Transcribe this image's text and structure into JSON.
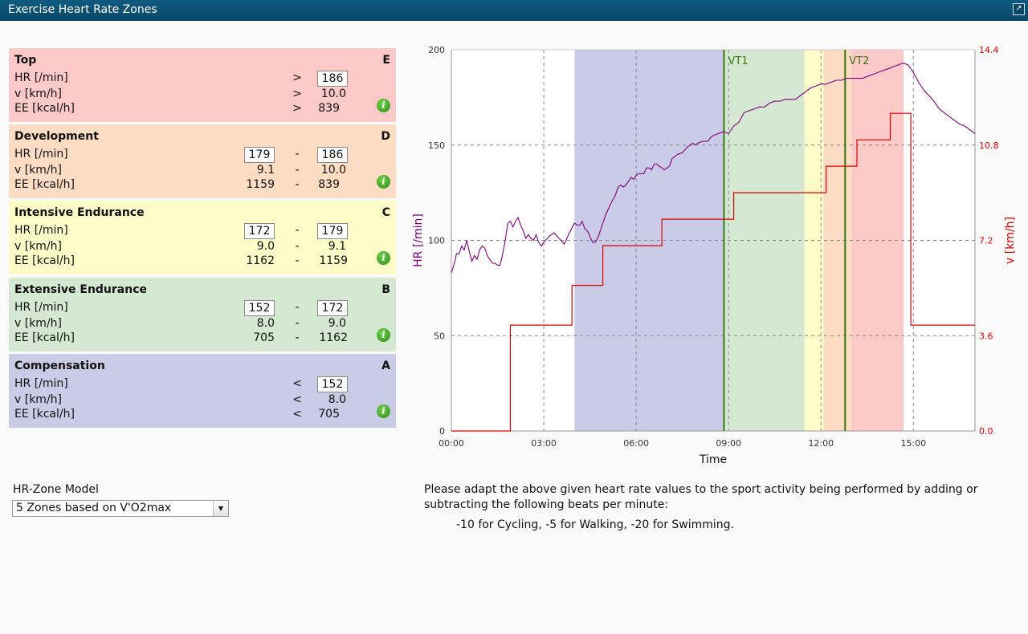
{
  "window": {
    "title": "Exercise Heart Rate Zones"
  },
  "labels": {
    "hr": "HR [/min]",
    "v": "v [km/h]",
    "ee": "EE [kcal/h]"
  },
  "zones": [
    {
      "name": "Top",
      "letter": "E",
      "bg": "#fcc9c9",
      "mode": "gt",
      "hr_low": "",
      "hr_high": "186",
      "v_low": "",
      "v_high": "10.0",
      "ee_low": "",
      "ee_high": "839",
      "op": ">"
    },
    {
      "name": "Development",
      "letter": "D",
      "bg": "#fddcc4",
      "mode": "range",
      "hr_low": "179",
      "hr_high": "186",
      "v_low": "9.1",
      "v_high": "10.0",
      "ee_low": "1159",
      "ee_high": "839",
      "op": "-"
    },
    {
      "name": "Intensive Endurance",
      "letter": "C",
      "bg": "#fdfcc8",
      "mode": "range",
      "hr_low": "172",
      "hr_high": "179",
      "v_low": "9.0",
      "v_high": "9.1",
      "ee_low": "1162",
      "ee_high": "1159",
      "op": "-"
    },
    {
      "name": "Extensive Endurance",
      "letter": "B",
      "bg": "#d4e8d2",
      "mode": "range",
      "hr_low": "152",
      "hr_high": "172",
      "v_low": "8.0",
      "v_high": "9.0",
      "ee_low": "705",
      "ee_high": "1162",
      "op": "-"
    },
    {
      "name": "Compensation",
      "letter": "A",
      "bg": "#cacbe6",
      "mode": "lt",
      "hr_low": "",
      "hr_high": "152",
      "v_low": "",
      "v_high": "8.0",
      "ee_low": "",
      "ee_high": "705",
      "op": "<"
    }
  ],
  "model": {
    "label": "HR-Zone Model",
    "selected": "5 Zones based on V'O2max"
  },
  "note": {
    "text": "Please adapt the above given heart rate values to the sport activity being performed by adding or subtracting the following beats per minute:",
    "adjust": "-10 for Cycling, -5 for Walking, -20 for Swimming."
  },
  "chart_data": {
    "type": "line",
    "xlabel": "Time",
    "ylabel_left": "HR [/min]",
    "ylabel_right": "v [km/h]",
    "x_ticks": [
      "00:00",
      "03:00",
      "06:00",
      "09:00",
      "12:00",
      "15:00"
    ],
    "x_tick_seconds": [
      0,
      180,
      360,
      540,
      720,
      900
    ],
    "xlim_seconds": [
      0,
      1020
    ],
    "ylim_left": [
      0,
      200
    ],
    "left_ticks": [
      "0",
      "50",
      "100",
      "150",
      "200"
    ],
    "ylim_right": [
      0.0,
      14.4
    ],
    "right_ticks": [
      "0.0",
      "3.6",
      "7.2",
      "10.8",
      "14.4"
    ],
    "colors": {
      "hr": "#800080",
      "v": "#e00000",
      "vt": "#3a7a10"
    },
    "zone_bands": [
      {
        "zone": "A",
        "from_s": 240,
        "to_s": 531,
        "color": "#cacbe6"
      },
      {
        "zone": "B",
        "from_s": 531,
        "to_s": 688,
        "color": "#d4e8d2"
      },
      {
        "zone": "C",
        "from_s": 688,
        "to_s": 725,
        "color": "#fdfcc8"
      },
      {
        "zone": "D",
        "from_s": 725,
        "to_s": 780,
        "color": "#fddcc4"
      },
      {
        "zone": "E",
        "from_s": 780,
        "to_s": 881,
        "color": "#fcc9c9"
      }
    ],
    "vt_lines": [
      {
        "name": "VT1",
        "t_s": 531
      },
      {
        "name": "VT2",
        "t_s": 767
      }
    ],
    "hr_series": {
      "name": "HR",
      "points": [
        [
          0,
          83
        ],
        [
          6,
          88
        ],
        [
          10,
          93
        ],
        [
          15,
          93
        ],
        [
          20,
          97
        ],
        [
          25,
          95
        ],
        [
          30,
          100
        ],
        [
          35,
          94
        ],
        [
          40,
          89
        ],
        [
          45,
          92
        ],
        [
          50,
          90
        ],
        [
          55,
          95
        ],
        [
          60,
          97
        ],
        [
          65,
          96
        ],
        [
          70,
          92
        ],
        [
          75,
          90
        ],
        [
          80,
          88
        ],
        [
          85,
          88
        ],
        [
          90,
          87
        ],
        [
          95,
          87
        ],
        [
          100,
          93
        ],
        [
          105,
          100
        ],
        [
          110,
          109
        ],
        [
          115,
          110
        ],
        [
          120,
          107
        ],
        [
          125,
          110
        ],
        [
          130,
          112
        ],
        [
          135,
          108
        ],
        [
          140,
          105
        ],
        [
          145,
          101
        ],
        [
          150,
          103
        ],
        [
          155,
          101
        ],
        [
          160,
          100
        ],
        [
          165,
          103
        ],
        [
          170,
          99
        ],
        [
          175,
          97
        ],
        [
          180,
          99
        ],
        [
          190,
          102
        ],
        [
          200,
          104
        ],
        [
          210,
          101
        ],
        [
          220,
          98
        ],
        [
          230,
          104
        ],
        [
          240,
          109
        ],
        [
          245,
          108
        ],
        [
          250,
          108
        ],
        [
          255,
          110
        ],
        [
          260,
          106
        ],
        [
          265,
          105
        ],
        [
          270,
          102
        ],
        [
          275,
          99
        ],
        [
          280,
          99
        ],
        [
          285,
          101
        ],
        [
          290,
          105
        ],
        [
          295,
          109
        ],
        [
          300,
          113
        ],
        [
          310,
          119
        ],
        [
          320,
          124
        ],
        [
          325,
          128
        ],
        [
          330,
          129
        ],
        [
          335,
          128
        ],
        [
          340,
          129
        ],
        [
          345,
          131
        ],
        [
          350,
          133
        ],
        [
          355,
          132
        ],
        [
          360,
          134
        ],
        [
          365,
          135
        ],
        [
          375,
          135
        ],
        [
          380,
          138
        ],
        [
          385,
          138
        ],
        [
          390,
          137
        ],
        [
          395,
          140
        ],
        [
          400,
          140
        ],
        [
          410,
          138
        ],
        [
          415,
          137
        ],
        [
          425,
          139
        ],
        [
          430,
          143
        ],
        [
          440,
          145
        ],
        [
          450,
          146
        ],
        [
          460,
          149
        ],
        [
          465,
          150
        ],
        [
          470,
          151
        ],
        [
          475,
          150
        ],
        [
          480,
          151
        ],
        [
          490,
          152
        ],
        [
          500,
          152
        ],
        [
          505,
          154
        ],
        [
          510,
          155
        ],
        [
          520,
          156
        ],
        [
          530,
          157
        ],
        [
          540,
          156
        ],
        [
          550,
          160
        ],
        [
          560,
          162
        ],
        [
          570,
          167
        ],
        [
          580,
          168
        ],
        [
          590,
          169
        ],
        [
          600,
          170
        ],
        [
          610,
          170
        ],
        [
          620,
          172
        ],
        [
          630,
          173
        ],
        [
          640,
          173
        ],
        [
          650,
          174
        ],
        [
          660,
          174
        ],
        [
          670,
          174
        ],
        [
          680,
          176
        ],
        [
          690,
          178
        ],
        [
          700,
          180
        ],
        [
          710,
          181
        ],
        [
          720,
          182
        ],
        [
          730,
          182
        ],
        [
          740,
          183
        ],
        [
          750,
          184
        ],
        [
          760,
          184
        ],
        [
          770,
          185
        ],
        [
          780,
          185
        ],
        [
          790,
          185
        ],
        [
          800,
          185
        ],
        [
          810,
          186
        ],
        [
          820,
          187
        ],
        [
          830,
          188
        ],
        [
          840,
          189
        ],
        [
          850,
          190
        ],
        [
          860,
          191
        ],
        [
          870,
          192
        ],
        [
          880,
          193
        ],
        [
          890,
          192
        ],
        [
          900,
          188
        ],
        [
          910,
          183
        ],
        [
          920,
          179
        ],
        [
          930,
          176
        ],
        [
          940,
          173
        ],
        [
          950,
          169
        ],
        [
          960,
          167
        ],
        [
          970,
          165
        ],
        [
          980,
          163
        ],
        [
          990,
          161
        ],
        [
          1000,
          160
        ],
        [
          1010,
          158
        ],
        [
          1020,
          156
        ]
      ]
    },
    "speed_series": {
      "name": "v",
      "steps": [
        [
          0,
          0.0
        ],
        [
          115,
          0.0
        ],
        [
          115,
          4.0
        ],
        [
          235,
          4.0
        ],
        [
          235,
          5.5
        ],
        [
          295,
          5.5
        ],
        [
          295,
          7.0
        ],
        [
          410,
          7.0
        ],
        [
          410,
          8.0
        ],
        [
          550,
          8.0
        ],
        [
          550,
          9.0
        ],
        [
          730,
          9.0
        ],
        [
          730,
          10.0
        ],
        [
          790,
          10.0
        ],
        [
          790,
          11.0
        ],
        [
          855,
          11.0
        ],
        [
          855,
          12.0
        ],
        [
          895,
          12.0
        ],
        [
          895,
          4.0
        ],
        [
          1020,
          4.0
        ]
      ]
    }
  }
}
